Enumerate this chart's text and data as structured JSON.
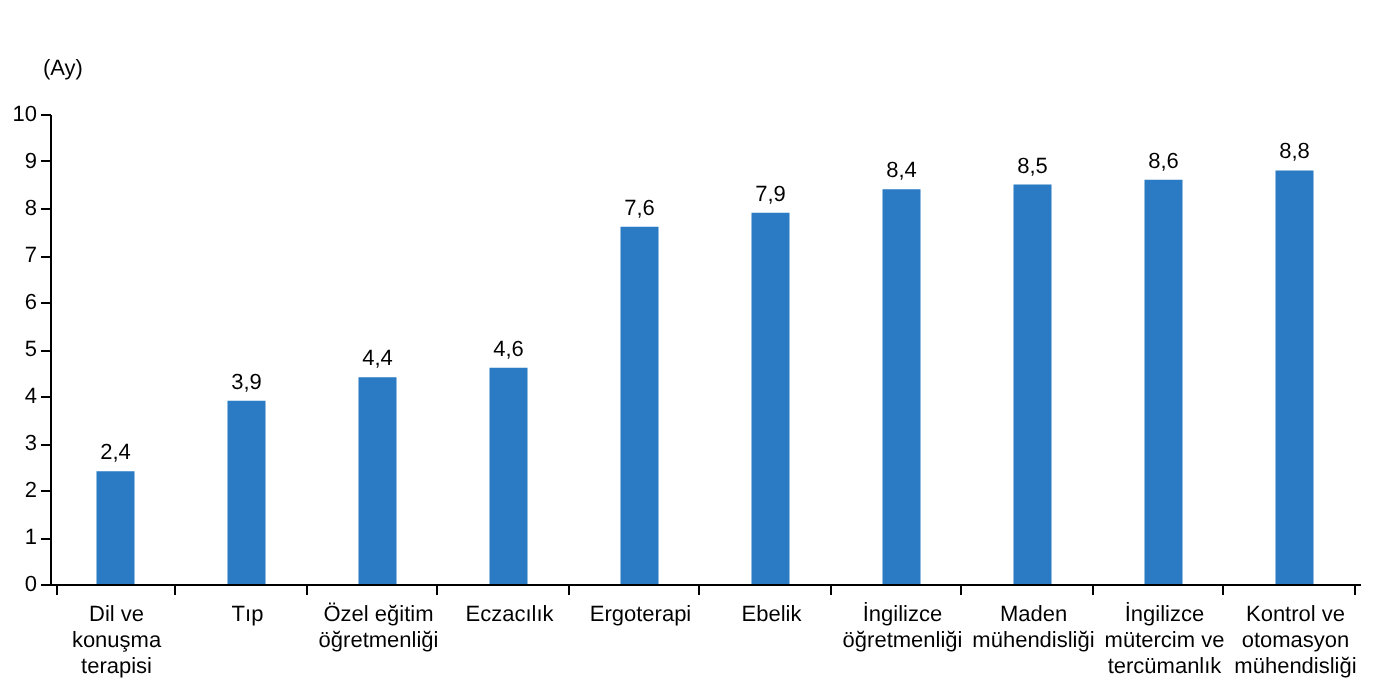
{
  "chart_data": {
    "type": "bar",
    "ylabel": "(Ay)",
    "categories": [
      "Dil ve konuşma terapisi",
      "Tıp",
      "Özel eğitim öğretmenliği",
      "Eczacılık",
      "Ergoterapi",
      "Ebelik",
      "İngilizce öğretmenliği",
      "Maden mühendisliği",
      "İngilizce mütercim ve tercümanlık",
      "Kontrol ve otomasyon mühendisliği"
    ],
    "values": [
      2.4,
      3.9,
      4.4,
      4.6,
      7.6,
      7.9,
      8.4,
      8.5,
      8.6,
      8.8
    ],
    "value_labels": [
      "2,4",
      "3,9",
      "4,4",
      "4,6",
      "7,6",
      "7,9",
      "8,4",
      "8,5",
      "8,6",
      "8,8"
    ],
    "color": "#2a7bc4",
    "ylim": [
      0,
      10
    ],
    "yticks": [
      0,
      1,
      2,
      3,
      4,
      5,
      6,
      7,
      8,
      9,
      10
    ],
    "grid": false
  }
}
